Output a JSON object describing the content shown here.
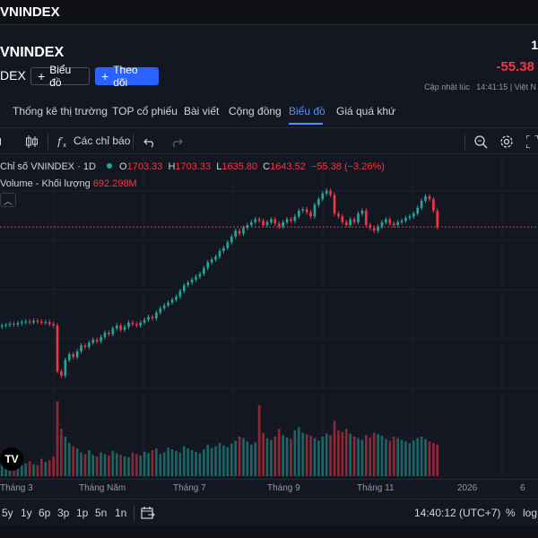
{
  "topbar": {
    "title": "VNINDEX"
  },
  "header": {
    "name": "VNINDEX",
    "code": "DEX",
    "chart_button": "Biểu đồ",
    "follow_button": "Theo dõi",
    "price_clip": "1",
    "change": "-55.38",
    "updated_label": "Cập nhật lúc",
    "updated_time": "14:41:15",
    "updated_suffix": "| Việt N"
  },
  "tabs": [
    {
      "label": "Thống kê thị trường"
    },
    {
      "label": "TOP cổ phiếu"
    },
    {
      "label": "Bài viết"
    },
    {
      "label": "Cộng đồng"
    },
    {
      "label": "Biểu đồ"
    },
    {
      "label": "Giá quá khứ"
    }
  ],
  "toolbar": {
    "indicators": "Các chỉ báo"
  },
  "legend": {
    "symbol": "Chỉ số VNINDEX · 1D",
    "o_label": "O",
    "o_value": "1703.33",
    "h_label": "H",
    "h_value": "1703.33",
    "l_label": "L",
    "l_value": "1635.80",
    "c_label": "C",
    "c_value": "1643.52",
    "change": "−55.38 (−3.26%)",
    "volume_label": "Volume - Khối lượng",
    "volume_value": "692.298M"
  },
  "x_axis": [
    "Tháng 3",
    "Tháng Năm",
    "Tháng 7",
    "Tháng 9",
    "Tháng 11",
    "2026",
    "6"
  ],
  "ranges": [
    "5y",
    "1y",
    "6p",
    "3p",
    "1p",
    "5n",
    "1n"
  ],
  "bottom": {
    "time": "14:40:12 (UTC+7)",
    "percent": "%",
    "log": "log"
  },
  "colors": {
    "up": "#26a69a",
    "down": "#f23645",
    "accent": "#2962ff",
    "bg": "#131722"
  },
  "chart_data": {
    "type": "candlestick",
    "series": [
      {
        "name": "Chỉ số VNINDEX",
        "close": [
          1300,
          1302,
          1306,
          1303,
          1308,
          1312,
          1314,
          1311,
          1316,
          1314,
          1310,
          1312,
          1305,
          1300,
          1140,
          1125,
          1180,
          1200,
          1190,
          1210,
          1230,
          1225,
          1240,
          1250,
          1245,
          1260,
          1275,
          1270,
          1290,
          1300,
          1285,
          1295,
          1310,
          1305,
          1300,
          1310,
          1320,
          1330,
          1325,
          1345,
          1360,
          1370,
          1380,
          1390,
          1400,
          1420,
          1440,
          1450,
          1460,
          1470,
          1480,
          1500,
          1520,
          1530,
          1540,
          1560,
          1570,
          1590,
          1610,
          1630,
          1620,
          1640,
          1650,
          1660,
          1670,
          1665,
          1650,
          1660,
          1670,
          1655,
          1645,
          1660,
          1670,
          1665,
          1680,
          1700,
          1705,
          1695,
          1680,
          1720,
          1740,
          1760,
          1770,
          1755,
          1690,
          1680,
          1660,
          1650,
          1670,
          1660,
          1690,
          1700,
          1650,
          1640,
          1630,
          1645,
          1660,
          1670,
          1655,
          1650,
          1660,
          1665,
          1675,
          1680,
          1690,
          1710,
          1735,
          1750,
          1740,
          1700,
          1643
        ]
      }
    ],
    "volume": [
      18,
      16,
      20,
      15,
      17,
      14,
      16,
      19,
      15,
      14,
      22,
      18,
      20,
      25,
      95,
      60,
      50,
      42,
      38,
      35,
      30,
      28,
      33,
      27,
      25,
      30,
      28,
      26,
      32,
      29,
      27,
      25,
      24,
      30,
      28,
      26,
      31,
      29,
      33,
      35,
      28,
      30,
      36,
      34,
      32,
      30,
      38,
      35,
      33,
      31,
      29,
      34,
      40,
      36,
      38,
      42,
      39,
      37,
      41,
      45,
      50,
      48,
      44,
      40,
      43,
      90,
      55,
      48,
      46,
      50,
      60,
      52,
      49,
      47,
      58,
      62,
      55,
      53,
      51,
      48,
      45,
      50,
      54,
      52,
      70,
      58,
      56,
      60,
      54,
      50,
      48,
      46,
      52,
      49,
      55,
      53,
      51,
      47,
      45,
      50,
      48,
      46,
      44,
      42,
      45,
      48,
      50,
      47,
      44,
      42,
      40
    ],
    "ylim": [
      1050,
      1800
    ],
    "volume_max": 100,
    "last_close": 1643.52,
    "x_labels": [
      "Tháng 3",
      "Tháng Năm",
      "Tháng 7",
      "Tháng 9",
      "Tháng 11",
      "2026",
      "6"
    ],
    "grid": true
  }
}
